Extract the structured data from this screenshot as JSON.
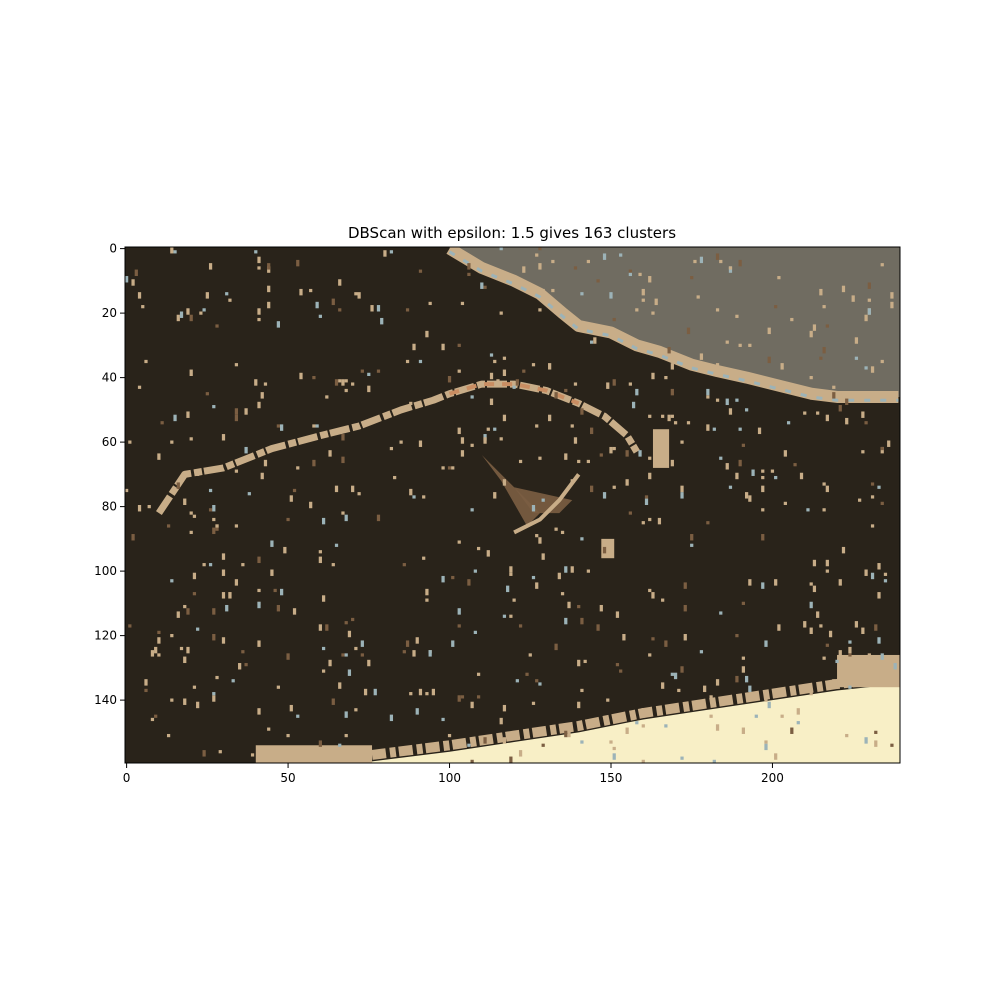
{
  "chart_data": {
    "type": "heatmap",
    "title": "DBScan with epsilon: 1.5 gives 163 clusters",
    "xlabel": "",
    "ylabel": "",
    "xlim": [
      -0.5,
      239.5
    ],
    "ylim": [
      159.5,
      -0.5
    ],
    "grid": false,
    "x_ticks": [
      0,
      50,
      100,
      150,
      200
    ],
    "y_ticks": [
      0,
      20,
      40,
      60,
      80,
      100,
      120,
      140
    ],
    "image_size": {
      "width": 240,
      "height": 160
    },
    "cluster_count": 163,
    "colors": {
      "background_cluster": "#29231a",
      "sky_cluster": "#706c61",
      "ground_cluster": "#f8efc6",
      "edge_cluster": "#c8ad88",
      "light_blue_cluster": "#9cb3b8",
      "brown_cluster": "#7b5e42",
      "orange_cluster": "#c98d62"
    },
    "regions": {
      "sky_boundary": [
        [
          100,
          0
        ],
        [
          110,
          6
        ],
        [
          120,
          10
        ],
        [
          128,
          14
        ],
        [
          135,
          20
        ],
        [
          140,
          24
        ],
        [
          150,
          26
        ],
        [
          158,
          30
        ],
        [
          165,
          32
        ],
        [
          175,
          36
        ],
        [
          183,
          38
        ],
        [
          192,
          40
        ],
        [
          200,
          42
        ],
        [
          212,
          45
        ],
        [
          220,
          46
        ],
        [
          239,
          46
        ]
      ],
      "ground_boundary": [
        [
          76,
          159
        ],
        [
          100,
          156
        ],
        [
          120,
          153
        ],
        [
          140,
          150
        ],
        [
          160,
          146
        ],
        [
          180,
          143
        ],
        [
          200,
          140
        ],
        [
          220,
          137
        ],
        [
          239,
          135
        ]
      ],
      "shell_arc": [
        [
          10,
          82
        ],
        [
          18,
          70
        ],
        [
          30,
          68
        ],
        [
          45,
          62
        ],
        [
          60,
          58
        ],
        [
          72,
          55
        ],
        [
          85,
          50
        ],
        [
          95,
          47
        ],
        [
          100,
          45
        ],
        [
          110,
          42
        ],
        [
          120,
          42
        ],
        [
          130,
          44
        ],
        [
          140,
          48
        ],
        [
          148,
          52
        ],
        [
          155,
          58
        ],
        [
          158,
          63
        ]
      ],
      "brown_patches": [
        [
          110,
          64,
          128,
          86
        ],
        [
          120,
          74,
          138,
          82
        ]
      ]
    }
  }
}
